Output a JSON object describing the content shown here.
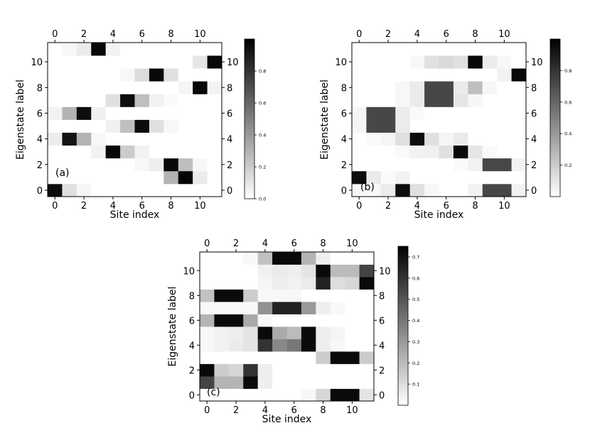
{
  "chart_data": [
    {
      "type": "heatmap",
      "panel_label": "(a)",
      "xlabel": "Site index",
      "ylabel": "Eigenstate label",
      "x_ticks": [
        "0",
        "2",
        "4",
        "6",
        "8",
        "10"
      ],
      "y_ticks": [
        "0",
        "2",
        "4",
        "6",
        "8",
        "10"
      ],
      "xlim": [
        -0.5,
        11.5
      ],
      "ylim": [
        -0.5,
        11.5
      ],
      "colorbar": {
        "min": 0.0,
        "max": 1.0,
        "ticks": [
          "0.0",
          "0.2",
          "0.4",
          "0.6",
          "0.8"
        ]
      },
      "colormap": "white-to-black",
      "grid": false,
      "z": [
        [
          0.95,
          0.12,
          0.04,
          0,
          0,
          0,
          0,
          0,
          0,
          0,
          0,
          0
        ],
        [
          0,
          0,
          0,
          0,
          0,
          0,
          0,
          0,
          0.3,
          0.98,
          0.08,
          0
        ],
        [
          0,
          0,
          0,
          0,
          0,
          0,
          0.03,
          0.07,
          0.97,
          0.25,
          0.03,
          0
        ],
        [
          0,
          0,
          0,
          0.05,
          0.97,
          0.2,
          0.05,
          0,
          0,
          0,
          0,
          0
        ],
        [
          0.07,
          0.92,
          0.3,
          0.03,
          0,
          0,
          0,
          0,
          0,
          0,
          0,
          0
        ],
        [
          0,
          0,
          0,
          0,
          0.06,
          0.25,
          0.95,
          0.12,
          0.03,
          0,
          0,
          0
        ],
        [
          0.05,
          0.3,
          0.95,
          0.06,
          0,
          0,
          0,
          0,
          0,
          0,
          0,
          0
        ],
        [
          0,
          0,
          0,
          0,
          0.12,
          0.95,
          0.25,
          0.05,
          0.02,
          0,
          0,
          0
        ],
        [
          0,
          0,
          0,
          0,
          0,
          0,
          0,
          0,
          0,
          0.04,
          0.97,
          0.05
        ],
        [
          0,
          0,
          0,
          0,
          0,
          0.03,
          0.14,
          0.97,
          0.12,
          0,
          0,
          0
        ],
        [
          0,
          0,
          0,
          0,
          0,
          0,
          0,
          0,
          0,
          0,
          0.1,
          0.97
        ],
        [
          0,
          0.03,
          0.08,
          0.97,
          0.05,
          0,
          0,
          0,
          0,
          0,
          0,
          0
        ]
      ]
    },
    {
      "type": "heatmap",
      "panel_label": "(b)",
      "xlabel": "Site index",
      "ylabel": "Eigenstate label",
      "x_ticks": [
        "0",
        "2",
        "4",
        "6",
        "8",
        "10"
      ],
      "y_ticks": [
        "0",
        "2",
        "4",
        "6",
        "8",
        "10"
      ],
      "xlim": [
        -0.5,
        11.5
      ],
      "ylim": [
        -0.5,
        11.5
      ],
      "colorbar": {
        "min": 0.0,
        "max": 1.0,
        "ticks": [
          "0.2",
          "0.4",
          "0.6",
          "0.8"
        ]
      },
      "colormap": "white-to-black",
      "grid": false,
      "z": [
        [
          0.03,
          0.03,
          0.08,
          0.95,
          0.12,
          0.03,
          0,
          0,
          0.05,
          0.72,
          0.72,
          0.05
        ],
        [
          0.95,
          0.08,
          0.02,
          0.05,
          0,
          0,
          0,
          0,
          0,
          0,
          0,
          0
        ],
        [
          0,
          0,
          0,
          0,
          0,
          0,
          0,
          0.02,
          0.05,
          0.72,
          0.72,
          0.05
        ],
        [
          0,
          0,
          0,
          0.02,
          0.05,
          0.06,
          0.12,
          0.97,
          0.1,
          0.02,
          0,
          0
        ],
        [
          0,
          0.02,
          0.04,
          0.12,
          0.95,
          0.12,
          0.04,
          0.08,
          0,
          0,
          0,
          0
        ],
        [
          0.04,
          0.72,
          0.72,
          0.08,
          0,
          0,
          0,
          0,
          0,
          0,
          0,
          0
        ],
        [
          0.04,
          0.72,
          0.72,
          0.08,
          0.02,
          0,
          0,
          0,
          0,
          0,
          0,
          0
        ],
        [
          0,
          0,
          0,
          0.03,
          0.08,
          0.72,
          0.72,
          0.1,
          0.03,
          0,
          0,
          0
        ],
        [
          0,
          0,
          0,
          0.03,
          0.08,
          0.72,
          0.72,
          0.08,
          0.25,
          0.03,
          0,
          0
        ],
        [
          0,
          0,
          0,
          0,
          0,
          0,
          0,
          0,
          0,
          0,
          0.05,
          0.97
        ],
        [
          0,
          0,
          0,
          0,
          0.03,
          0.12,
          0.15,
          0.12,
          0.97,
          0.08,
          0.03,
          0
        ],
        [
          0,
          0,
          0,
          0,
          0,
          0,
          0,
          0,
          0,
          0,
          0,
          0
        ]
      ]
    },
    {
      "type": "heatmap",
      "panel_label": "(c)",
      "xlabel": "Site index",
      "ylabel": "Eigenstate label",
      "x_ticks": [
        "0",
        "2",
        "4",
        "6",
        "8",
        "10"
      ],
      "y_ticks": [
        "0",
        "2",
        "4",
        "6",
        "8",
        "10"
      ],
      "xlim": [
        -0.5,
        11.5
      ],
      "ylim": [
        -0.5,
        11.5
      ],
      "colorbar": {
        "min": 0.0,
        "max": 0.75,
        "ticks": [
          "0.1",
          "0.2",
          "0.3",
          "0.4",
          "0.5",
          "0.6",
          "0.7"
        ]
      },
      "colormap": "white-to-black",
      "grid": false,
      "z": [
        [
          0,
          0,
          0,
          0,
          0,
          0,
          0,
          0.02,
          0.12,
          0.72,
          0.72,
          0.08
        ],
        [
          0.55,
          0.22,
          0.22,
          0.72,
          0.05,
          0,
          0,
          0,
          0,
          0,
          0,
          0
        ],
        [
          0.72,
          0.15,
          0.12,
          0.6,
          0.05,
          0,
          0,
          0,
          0,
          0,
          0,
          0
        ],
        [
          0,
          0,
          0,
          0,
          0,
          0,
          0,
          0,
          0.15,
          0.72,
          0.72,
          0.15
        ],
        [
          0.02,
          0.04,
          0.06,
          0.08,
          0.6,
          0.35,
          0.4,
          0.72,
          0.05,
          0.02,
          0,
          0
        ],
        [
          0.02,
          0.04,
          0.05,
          0.08,
          0.72,
          0.25,
          0.2,
          0.72,
          0.05,
          0.03,
          0,
          0
        ],
        [
          0.22,
          0.72,
          0.72,
          0.25,
          0.02,
          0,
          0,
          0,
          0,
          0,
          0,
          0
        ],
        [
          0.02,
          0.02,
          0.02,
          0.02,
          0.32,
          0.65,
          0.65,
          0.3,
          0.05,
          0.02,
          0,
          0
        ],
        [
          0.18,
          0.72,
          0.72,
          0.15,
          0.02,
          0.02,
          0.02,
          0,
          0,
          0,
          0,
          0
        ],
        [
          0,
          0,
          0,
          0,
          0.03,
          0.05,
          0.04,
          0.06,
          0.65,
          0.1,
          0.12,
          0.72
        ],
        [
          0,
          0,
          0,
          0,
          0.04,
          0.06,
          0.05,
          0.08,
          0.72,
          0.2,
          0.2,
          0.55
        ],
        [
          0,
          0,
          0,
          0.02,
          0.18,
          0.72,
          0.72,
          0.22,
          0.05,
          0,
          0,
          0
        ]
      ]
    }
  ]
}
